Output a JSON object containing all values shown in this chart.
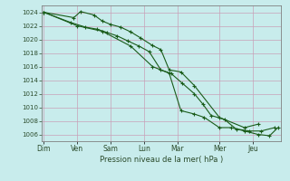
{
  "title": "Pression niveau de la mer( hPa )",
  "bg_color": "#c8ecec",
  "grid_color_major": "#b0b8c8",
  "grid_color_minor": "#d0d8e0",
  "line_color": "#1a5c1a",
  "ylim": [
    1005.0,
    1025.0
  ],
  "yticks": [
    1006,
    1008,
    1010,
    1012,
    1014,
    1016,
    1018,
    1020,
    1022,
    1024
  ],
  "day_labels": [
    "Dim",
    "Ven",
    "Sam",
    "Lun",
    "Mar",
    "Mer",
    "Jeu"
  ],
  "day_x": [
    0.0,
    2.0,
    4.0,
    6.0,
    8.0,
    10.5,
    12.5
  ],
  "xlim": [
    -0.1,
    14.2
  ],
  "series1_x": [
    0.0,
    1.8,
    2.2,
    3.0,
    3.5,
    4.0,
    4.6,
    5.2,
    5.8,
    6.5,
    7.0,
    7.5,
    8.2,
    9.0,
    10.5,
    12.0,
    12.8
  ],
  "series1_y": [
    1024.0,
    1023.2,
    1024.1,
    1023.6,
    1022.7,
    1022.2,
    1021.8,
    1021.1,
    1020.2,
    1019.1,
    1018.5,
    1015.5,
    1015.2,
    1013.2,
    1008.5,
    1007.0,
    1007.5
  ],
  "series2_x": [
    0.0,
    1.6,
    2.5,
    3.2,
    3.8,
    4.4,
    5.0,
    5.7,
    6.3,
    7.0,
    7.6,
    8.3,
    9.0,
    9.5,
    10.0,
    10.8,
    11.5,
    12.3,
    13.0,
    13.8
  ],
  "series2_y": [
    1024.0,
    1022.5,
    1021.8,
    1021.5,
    1021.0,
    1020.5,
    1019.8,
    1019.0,
    1018.2,
    1015.5,
    1015.0,
    1013.5,
    1012.0,
    1010.5,
    1008.8,
    1008.2,
    1006.8,
    1006.5,
    1006.5,
    1007.0
  ],
  "series3_x": [
    0.0,
    2.0,
    3.5,
    5.2,
    6.5,
    7.5,
    8.2,
    9.0,
    9.6,
    10.5,
    11.2,
    12.0,
    12.8,
    13.5,
    14.0
  ],
  "series3_y": [
    1024.0,
    1022.0,
    1021.2,
    1019.0,
    1016.0,
    1015.0,
    1009.5,
    1009.0,
    1008.5,
    1007.0,
    1007.0,
    1006.5,
    1006.0,
    1005.8,
    1007.0
  ]
}
